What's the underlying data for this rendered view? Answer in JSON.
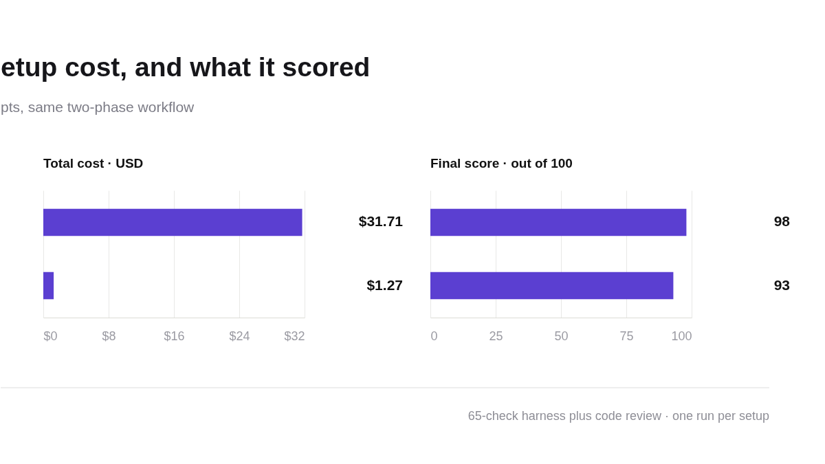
{
  "chart_data": [
    {
      "type": "other",
      "title": "etup cost, and what it scored",
      "subtitle": "pts, same two-phase workflow",
      "annotations": [
        "65-check harness plus code review · one run per setup"
      ]
    },
    {
      "type": "bar",
      "orientation": "horizontal",
      "title": "Total cost · USD",
      "categories": [
        null,
        null
      ],
      "values": [
        31.71,
        1.27
      ],
      "color": "#5b3fd1",
      "value_labels": [
        "$31.71",
        "$1.27"
      ],
      "xlim": [
        0,
        32
      ],
      "xticks": [
        {
          "value": 0,
          "label": "$0"
        },
        {
          "value": 8,
          "label": "$8"
        },
        {
          "value": 16,
          "label": "$16"
        },
        {
          "value": 24,
          "label": "$24"
        },
        {
          "value": 32,
          "label": "$32"
        }
      ],
      "grid": "x",
      "tick_labels": "x",
      "legend": false
    },
    {
      "type": "bar",
      "orientation": "horizontal",
      "title": "Final score · out of 100",
      "categories": [
        null,
        null
      ],
      "values": [
        98,
        93
      ],
      "color": "#5b3fd1",
      "data_labels": true,
      "xlim": [
        0,
        100
      ],
      "xticks": [
        0,
        25,
        50,
        75,
        100
      ],
      "grid": "x",
      "tick_labels": "x",
      "legend": false
    }
  ]
}
